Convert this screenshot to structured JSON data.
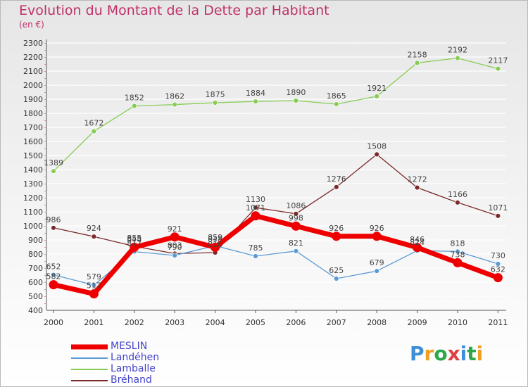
{
  "title": "Evolution du Montant de la Dette par Habitant",
  "subtitle": "(en €)",
  "logo": {
    "letters": [
      "P",
      "r",
      "o",
      "x",
      "i",
      "t",
      "i"
    ],
    "colors": [
      "#3c8fd8",
      "#f0a020",
      "#2aa84a",
      "#e04040",
      "#3c8fd8",
      "#2aa84a",
      "#f0a020"
    ]
  },
  "chart_data": {
    "type": "line",
    "x": [
      "2000",
      "2001",
      "2002",
      "2003",
      "2004",
      "2005",
      "2006",
      "2007",
      "2008",
      "2009",
      "2010",
      "2011"
    ],
    "ylim": [
      400,
      2300
    ],
    "yticks": [
      400,
      500,
      600,
      700,
      800,
      900,
      1000,
      1100,
      1200,
      1300,
      1400,
      1500,
      1600,
      1700,
      1800,
      1900,
      2000,
      2100,
      2200,
      2300
    ],
    "grid": true,
    "legend_placement": "bottom-left",
    "series": [
      {
        "name": "Lamballe",
        "color": "#88cc55",
        "width": 1.3,
        "marker": 3.5,
        "values": [
          1389,
          1672,
          1852,
          1862,
          1875,
          1884,
          1890,
          1865,
          1921,
          2158,
          2192,
          2117
        ],
        "labels": [
          "1389",
          "1672",
          "1852",
          "1862",
          "1875",
          "1884",
          "1890",
          "1865",
          "1921",
          "2158",
          "2192",
          "2117"
        ]
      },
      {
        "name": "Bréhand",
        "color": "#7a2a2a",
        "width": 1.3,
        "marker": 3.5,
        "values": [
          986,
          924,
          855,
          803,
          810,
          1130,
          1086,
          1276,
          1508,
          1272,
          1166,
          1071
        ],
        "labels": [
          "986",
          "924",
          "855",
          "803",
          "810",
          "1130",
          "1086",
          "1276",
          "1508",
          "1272",
          "1166",
          "1071"
        ]
      },
      {
        "name": "Landéhen",
        "color": "#5b9bd5",
        "width": 1.3,
        "marker": 3.5,
        "values": [
          652,
          579,
          817,
          790,
          859,
          785,
          821,
          625,
          679,
          824,
          818,
          730
        ],
        "labels": [
          "652",
          "579",
          "817",
          "790",
          "859",
          "785",
          "821",
          "625",
          "679",
          "824",
          "818",
          "730"
        ]
      },
      {
        "name": "MESLIN",
        "color": "#ee0000",
        "width": 7,
        "marker": 6.5,
        "values": [
          582,
          517,
          848,
          921,
          848,
          1071,
          998,
          926,
          926,
          846,
          738,
          632
        ],
        "labels": [
          "582",
          "517",
          "848",
          "921",
          "848",
          "1071",
          "998",
          "926",
          "926",
          "846",
          "738",
          "632"
        ]
      }
    ],
    "legend": [
      {
        "name": "MESLIN",
        "color": "#ee0000",
        "width": 7
      },
      {
        "name": "Landéhen",
        "color": "#5b9bd5",
        "width": 2
      },
      {
        "name": "Lamballe",
        "color": "#88cc55",
        "width": 2
      },
      {
        "name": "Bréhand",
        "color": "#7a2a2a",
        "width": 2
      }
    ]
  }
}
